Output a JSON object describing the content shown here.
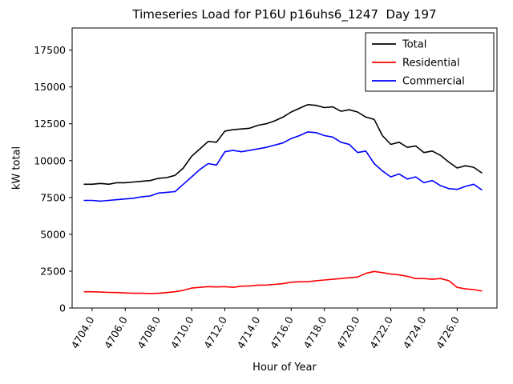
{
  "chart_data": {
    "type": "line",
    "title": "Timeseries Load for P16U p16uhs6_1247  Day 197",
    "xlabel": "Hour of Year",
    "ylabel": "kW total",
    "xlim": [
      4702.8,
      4728.4
    ],
    "ylim": [
      0,
      19000
    ],
    "xticks": [
      4704,
      4706,
      4708,
      4710,
      4712,
      4714,
      4716,
      4718,
      4720,
      4722,
      4724,
      4726
    ],
    "xtick_labels": [
      "4704.0",
      "4706.0",
      "4708.0",
      "4710.0",
      "4712.0",
      "4714.0",
      "4716.0",
      "4718.0",
      "4720.0",
      "4722.0",
      "4724.0",
      "4726.0"
    ],
    "yticks": [
      0,
      2500,
      5000,
      7500,
      10000,
      12500,
      15000,
      17500
    ],
    "grid": false,
    "legend_position": "upper right",
    "legend_labels": [
      "Total",
      "Residential",
      "Commercial"
    ],
    "x": [
      4703.5,
      4704.0,
      4704.5,
      4705.0,
      4705.5,
      4706.0,
      4706.5,
      4707.0,
      4707.5,
      4708.0,
      4708.5,
      4709.0,
      4709.5,
      4710.0,
      4710.5,
      4711.0,
      4711.5,
      4712.0,
      4712.5,
      4713.0,
      4713.5,
      4714.0,
      4714.5,
      4715.0,
      4715.5,
      4716.0,
      4716.5,
      4717.0,
      4717.5,
      4718.0,
      4718.5,
      4719.0,
      4719.5,
      4720.0,
      4720.5,
      4721.0,
      4721.5,
      4722.0,
      4722.5,
      4723.0,
      4723.5,
      4724.0,
      4724.5,
      4725.0,
      4725.5,
      4726.0,
      4726.5,
      4727.0,
      4727.5
    ],
    "series": [
      {
        "name": "Total",
        "color": "#000000",
        "values": [
          8400,
          8400,
          8450,
          8400,
          8500,
          8500,
          8550,
          8600,
          8650,
          8800,
          8850,
          9000,
          9500,
          10300,
          10800,
          11300,
          11250,
          12000,
          12100,
          12150,
          12200,
          12400,
          12500,
          12700,
          12950,
          13300,
          13550,
          13800,
          13750,
          13600,
          13650,
          13350,
          13450,
          13300,
          12950,
          12800,
          11700,
          11100,
          11250,
          10900,
          11000,
          10550,
          10650,
          10350,
          9900,
          9500,
          9650,
          9550,
          9150
        ]
      },
      {
        "name": "Residential",
        "color": "#ff0000",
        "values": [
          1100,
          1100,
          1080,
          1060,
          1050,
          1020,
          1000,
          1000,
          980,
          1000,
          1050,
          1100,
          1200,
          1350,
          1400,
          1450,
          1430,
          1450,
          1400,
          1480,
          1500,
          1550,
          1560,
          1600,
          1650,
          1750,
          1780,
          1780,
          1850,
          1900,
          1950,
          2000,
          2050,
          2100,
          2350,
          2480,
          2400,
          2300,
          2250,
          2150,
          2000,
          2000,
          1950,
          2000,
          1850,
          1400,
          1300,
          1250,
          1150
        ]
      },
      {
        "name": "Commercial",
        "color": "#0000ff",
        "values": [
          7300,
          7300,
          7250,
          7300,
          7350,
          7400,
          7450,
          7550,
          7600,
          7800,
          7850,
          7900,
          8400,
          8900,
          9400,
          9800,
          9700,
          10600,
          10700,
          10600,
          10700,
          10800,
          10900,
          11050,
          11200,
          11500,
          11700,
          11950,
          11900,
          11700,
          11600,
          11250,
          11100,
          10550,
          10650,
          9800,
          9300,
          8900,
          9100,
          8750,
          8900,
          8500,
          8650,
          8300,
          8100,
          8050,
          8250,
          8400,
          8000
        ]
      }
    ]
  }
}
